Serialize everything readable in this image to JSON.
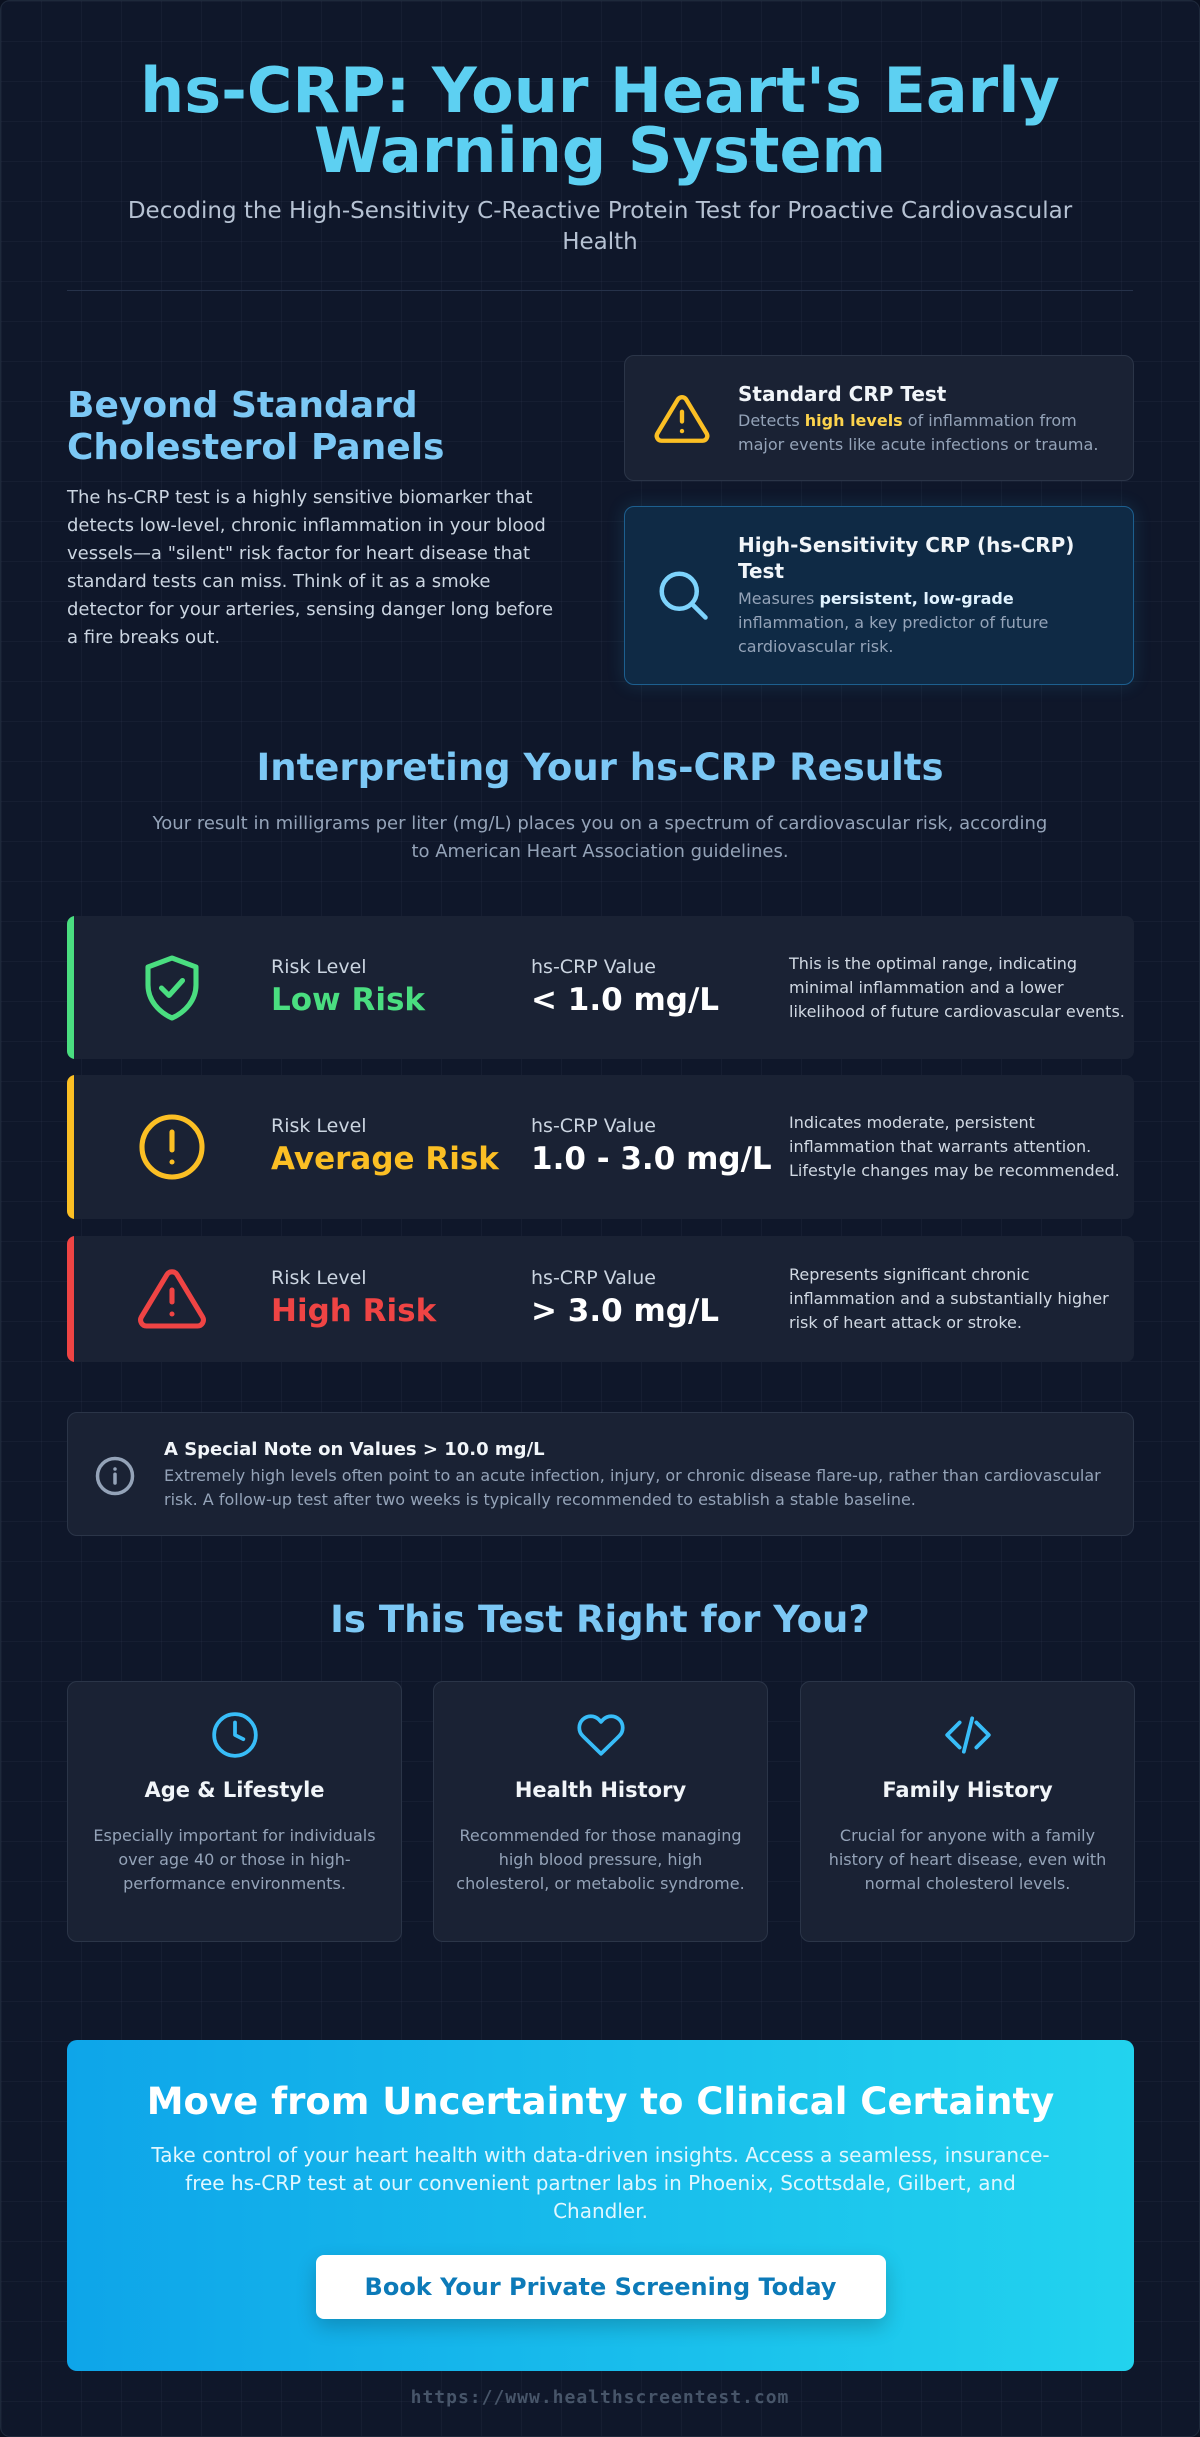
{
  "header": {
    "title": "hs-CRP: Your Heart's Early Warning System",
    "subtitle": "Decoding the High-Sensitivity C-Reactive Protein Test for Proactive Cardiovascular Health"
  },
  "intro": {
    "heading": "Beyond Standard Cholesterol Panels",
    "body": "The hs-CRP test is a highly sensitive biomarker that detects low-level, chronic inflammation in your blood vessels—a \"silent\" risk factor for heart disease that standard tests can miss. Think of it as a smoke detector for your arteries, sensing danger long before a fire breaks out.",
    "cards": [
      {
        "title": "Standard CRP Test",
        "before": "Detects",
        "highlight": "high levels",
        "after": "of inflammation from major events like acute infections or trauma."
      },
      {
        "title": "High-Sensitivity CRP (hs-CRP) Test",
        "before": "Measures",
        "highlight": "persistent, low-grade",
        "after": "inflammation, a key predictor of future cardiovascular risk."
      }
    ]
  },
  "results": {
    "heading": "Interpreting Your hs-CRP Results",
    "intro": "Your result in milligrams per liter (mg/L) places you on a spectrum of cardiovascular risk, according to American Heart Association guidelines.",
    "levels": [
      {
        "label": "Risk Level",
        "name": "Low Risk",
        "value_label": "hs-CRP Value",
        "value": "< 1.0 mg/L",
        "description": "This is the optimal range, indicating minimal inflammation and a lower likelihood of future cardiovascular events."
      },
      {
        "label": "Risk Level",
        "name": "Average Risk",
        "value_label": "hs-CRP Value",
        "value": "1.0 - 3.0 mg/L",
        "description": "Indicates moderate, persistent inflammation that warrants attention. Lifestyle changes may be recommended."
      },
      {
        "label": "Risk Level",
        "name": "High Risk",
        "value_label": "hs-CRP Value",
        "value": "> 3.0 mg/L",
        "description": "Represents significant chronic inflammation and a substantially higher risk of heart attack or stroke."
      }
    ]
  },
  "note": {
    "title": "A Special Note on Values > 10.0 mg/L",
    "body": "Extremely high levels often point to an acute infection, injury, or chronic disease flare-up, rather than cardiovascular risk. A follow-up test after two weeks is typically recommended to establish a stable baseline."
  },
  "audience": {
    "heading": "Is This Test Right for You?",
    "items": [
      {
        "title": "Age & Lifestyle",
        "body": "Especially important for individuals over age 40 or those in high-performance environments."
      },
      {
        "title": "Health History",
        "body": "Recommended for those managing high blood pressure, high cholesterol, or metabolic syndrome."
      },
      {
        "title": "Family History",
        "body": "Crucial for anyone with a family history of heart disease, even with normal cholesterol levels."
      }
    ]
  },
  "cta": {
    "heading": "Move from Uncertainty to Clinical Certainty",
    "body": "Take control of your heart health with data-driven insights. Access a seamless, insurance-free hs-CRP test at our convenient partner labs in Phoenix, Scottsdale, Gilbert, and Chandler.",
    "button": "Book Your Private Screening Today"
  },
  "footer": {
    "url": "https://www.healthscreentest.com"
  }
}
